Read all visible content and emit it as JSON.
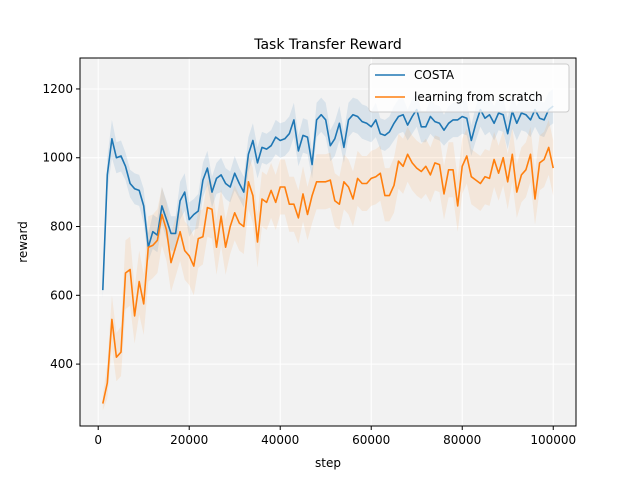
{
  "chart_data": {
    "type": "line",
    "title": "Task Transfer Reward",
    "xlabel": "step",
    "ylabel": "reward",
    "xlim": [
      -4000,
      105000
    ],
    "ylim": [
      220,
      1290
    ],
    "xticks": [
      0,
      20000,
      40000,
      60000,
      80000,
      100000
    ],
    "yticks": [
      400,
      600,
      800,
      1000,
      1200
    ],
    "grid": true,
    "background": "#f2f2f2",
    "legend_position": "top-right",
    "x": [
      1000,
      2000,
      3000,
      4000,
      5000,
      6000,
      7000,
      8000,
      9000,
      10000,
      11000,
      12000,
      13000,
      14000,
      15000,
      16000,
      17000,
      18000,
      19000,
      20000,
      21000,
      22000,
      23000,
      24000,
      25000,
      26000,
      27000,
      28000,
      29000,
      30000,
      31000,
      32000,
      33000,
      34000,
      35000,
      36000,
      37000,
      38000,
      39000,
      40000,
      41000,
      42000,
      43000,
      44000,
      45000,
      46000,
      47000,
      48000,
      49000,
      50000,
      51000,
      52000,
      53000,
      54000,
      55000,
      56000,
      57000,
      58000,
      59000,
      60000,
      61000,
      62000,
      63000,
      64000,
      65000,
      66000,
      67000,
      68000,
      69000,
      70000,
      71000,
      72000,
      73000,
      74000,
      75000,
      76000,
      77000,
      78000,
      79000,
      80000,
      81000,
      82000,
      83000,
      84000,
      85000,
      86000,
      87000,
      88000,
      89000,
      90000,
      91000,
      92000,
      93000,
      94000,
      95000,
      96000,
      97000,
      98000,
      99000,
      100000
    ],
    "series": [
      {
        "name": "COSTA",
        "color": "#1f77b4",
        "band_color": "#1f77b4",
        "band_opacity": 0.12,
        "values": [
          615,
          950,
          1055,
          1000,
          1005,
          975,
          925,
          910,
          905,
          860,
          740,
          785,
          775,
          860,
          820,
          780,
          780,
          875,
          900,
          820,
          835,
          845,
          935,
          970,
          900,
          940,
          950,
          925,
          915,
          955,
          925,
          900,
          1010,
          1050,
          985,
          1030,
          1025,
          1035,
          1060,
          1050,
          1055,
          1070,
          1110,
          1020,
          1065,
          1060,
          980,
          1110,
          1125,
          1110,
          1035,
          1055,
          1100,
          1030,
          1110,
          1125,
          1120,
          1105,
          1100,
          1090,
          1110,
          1070,
          1065,
          1075,
          1100,
          1120,
          1125,
          1095,
          1120,
          1140,
          1090,
          1090,
          1120,
          1105,
          1100,
          1080,
          1100,
          1110,
          1110,
          1120,
          1115,
          1050,
          1100,
          1140,
          1115,
          1125,
          1100,
          1130,
          1125,
          1070,
          1135,
          1100,
          1130,
          1125,
          1110,
          1140,
          1115,
          1110,
          1140,
          1150
        ],
        "band_lower": [
          590,
          900,
          1000,
          955,
          960,
          935,
          885,
          865,
          860,
          810,
          700,
          735,
          725,
          805,
          765,
          730,
          730,
          820,
          845,
          770,
          790,
          795,
          885,
          920,
          855,
          895,
          900,
          880,
          870,
          905,
          880,
          855,
          960,
          1000,
          940,
          985,
          980,
          990,
          1010,
          1000,
          1005,
          1020,
          1060,
          975,
          1015,
          1010,
          940,
          1060,
          1075,
          1060,
          990,
          1005,
          1050,
          985,
          1060,
          1075,
          1070,
          1055,
          1050,
          1045,
          1060,
          1025,
          1020,
          1030,
          1050,
          1070,
          1075,
          1050,
          1070,
          1090,
          1045,
          1045,
          1070,
          1055,
          1050,
          1035,
          1050,
          1060,
          1060,
          1070,
          1065,
          1005,
          1050,
          1090,
          1065,
          1075,
          1050,
          1080,
          1075,
          1025,
          1085,
          1050,
          1080,
          1075,
          1060,
          1090,
          1065,
          1060,
          1090,
          1100
        ],
        "band_upper": [
          640,
          1000,
          1110,
          1045,
          1050,
          1015,
          965,
          955,
          950,
          910,
          780,
          835,
          825,
          915,
          875,
          830,
          830,
          930,
          955,
          870,
          880,
          895,
          985,
          1020,
          945,
          985,
          1000,
          970,
          960,
          1005,
          970,
          945,
          1060,
          1100,
          1030,
          1075,
          1070,
          1080,
          1110,
          1100,
          1105,
          1120,
          1160,
          1065,
          1115,
          1110,
          1020,
          1160,
          1175,
          1160,
          1080,
          1105,
          1150,
          1075,
          1160,
          1175,
          1170,
          1155,
          1150,
          1135,
          1160,
          1115,
          1110,
          1120,
          1150,
          1170,
          1175,
          1140,
          1170,
          1190,
          1135,
          1135,
          1170,
          1155,
          1150,
          1125,
          1150,
          1160,
          1160,
          1170,
          1165,
          1095,
          1150,
          1190,
          1165,
          1175,
          1150,
          1180,
          1175,
          1115,
          1185,
          1150,
          1180,
          1175,
          1160,
          1190,
          1165,
          1160,
          1190,
          1200
        ]
      },
      {
        "name": "learning from scratch",
        "color": "#ff7f0e",
        "band_color": "#ff7f0e",
        "band_opacity": 0.1,
        "values": [
          285,
          345,
          530,
          420,
          435,
          665,
          675,
          540,
          640,
          575,
          740,
          745,
          760,
          835,
          790,
          695,
          740,
          785,
          730,
          715,
          685,
          765,
          770,
          855,
          850,
          740,
          830,
          740,
          800,
          840,
          810,
          800,
          930,
          890,
          755,
          880,
          870,
          905,
          870,
          915,
          915,
          865,
          865,
          825,
          895,
          835,
          890,
          930,
          930,
          930,
          935,
          875,
          865,
          930,
          915,
          880,
          940,
          925,
          925,
          940,
          945,
          955,
          890,
          890,
          920,
          990,
          975,
          1010,
          985,
          970,
          960,
          975,
          950,
          985,
          980,
          895,
          965,
          965,
          860,
          975,
          1005,
          945,
          935,
          925,
          945,
          940,
          995,
          955,
          1000,
          930,
          1010,
          900,
          950,
          965,
          1010,
          880,
          985,
          995,
          1030,
          970
        ],
        "band_lower": [
          265,
          300,
          450,
          350,
          365,
          560,
          570,
          460,
          545,
          485,
          640,
          650,
          665,
          745,
          700,
          610,
          655,
          700,
          645,
          630,
          600,
          680,
          690,
          770,
          765,
          660,
          745,
          660,
          720,
          760,
          730,
          720,
          850,
          810,
          680,
          800,
          790,
          825,
          790,
          835,
          835,
          785,
          785,
          750,
          815,
          760,
          810,
          850,
          850,
          850,
          855,
          800,
          790,
          850,
          835,
          800,
          860,
          845,
          845,
          860,
          865,
          875,
          815,
          815,
          840,
          910,
          895,
          930,
          905,
          890,
          880,
          895,
          870,
          905,
          900,
          820,
          885,
          885,
          785,
          895,
          925,
          865,
          855,
          845,
          865,
          860,
          915,
          875,
          920,
          850,
          930,
          825,
          870,
          885,
          930,
          805,
          905,
          915,
          950,
          890
        ],
        "band_upper": [
          310,
          400,
          600,
          490,
          510,
          760,
          770,
          620,
          730,
          660,
          830,
          835,
          850,
          915,
          870,
          780,
          825,
          865,
          815,
          800,
          770,
          845,
          850,
          935,
          930,
          820,
          910,
          820,
          880,
          920,
          890,
          880,
          1010,
          970,
          835,
          960,
          950,
          985,
          950,
          995,
          995,
          945,
          945,
          905,
          975,
          915,
          970,
          1010,
          1010,
          1010,
          1015,
          955,
          945,
          1010,
          995,
          960,
          1020,
          1005,
          1005,
          1020,
          1025,
          1035,
          970,
          970,
          1000,
          1070,
          1055,
          1090,
          1065,
          1050,
          1040,
          1055,
          1030,
          1065,
          1060,
          975,
          1045,
          1045,
          940,
          1055,
          1085,
          1025,
          1015,
          1005,
          1025,
          1020,
          1075,
          1035,
          1080,
          1010,
          1090,
          980,
          1030,
          1045,
          1090,
          960,
          1065,
          1075,
          1110,
          1050
        ]
      }
    ]
  }
}
